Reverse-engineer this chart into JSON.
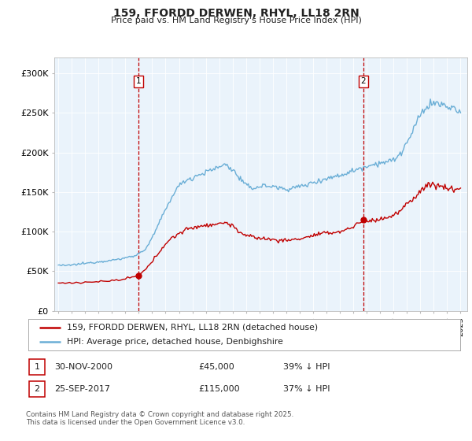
{
  "title": "159, FFORDD DERWEN, RHYL, LL18 2RN",
  "subtitle": "Price paid vs. HM Land Registry's House Price Index (HPI)",
  "ylim": [
    0,
    320000
  ],
  "yticks": [
    0,
    50000,
    100000,
    150000,
    200000,
    250000,
    300000
  ],
  "ytick_labels": [
    "£0",
    "£50K",
    "£100K",
    "£150K",
    "£200K",
    "£250K",
    "£300K"
  ],
  "hpi_color": "#6aaed6",
  "price_color": "#c00000",
  "marker1_date_x": 2001.0,
  "marker1_price": 45000,
  "marker2_date_x": 2017.75,
  "marker2_price": 115000,
  "legend_entry1": "159, FFORDD DERWEN, RHYL, LL18 2RN (detached house)",
  "legend_entry2": "HPI: Average price, detached house, Denbighshire",
  "table_row1": [
    "1",
    "30-NOV-2000",
    "£45,000",
    "39% ↓ HPI"
  ],
  "table_row2": [
    "2",
    "25-SEP-2017",
    "£115,000",
    "37% ↓ HPI"
  ],
  "footnote": "Contains HM Land Registry data © Crown copyright and database right 2025.\nThis data is licensed under the Open Government Licence v3.0.",
  "background_color": "#ffffff",
  "plot_bg_color": "#eaf3fb",
  "grid_color": "#ffffff",
  "xmin": 1994.7,
  "xmax": 2025.5
}
